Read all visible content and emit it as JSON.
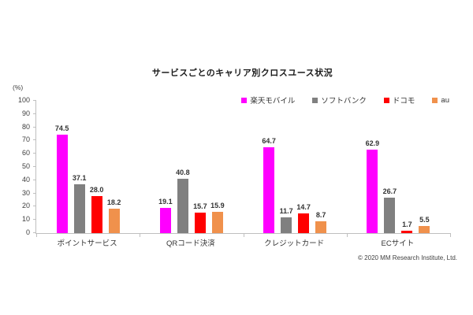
{
  "copyright": "© 2020 MM Research Institute, Ltd.",
  "chart_data": {
    "type": "bar",
    "title": "サービスごとのキャリア別クロスユース状況",
    "xlabel": "",
    "ylabel": "(%)",
    "ylim": [
      0,
      100
    ],
    "ytick_step": 10,
    "grid": false,
    "legend_position": "top-right",
    "categories": [
      "ポイントサービス",
      "QRコード決済",
      "クレジットカード",
      "ECサイト"
    ],
    "series": [
      {
        "name": "楽天モバイル",
        "color": "#FF00FF",
        "values": [
          74.5,
          19.1,
          64.7,
          62.9
        ]
      },
      {
        "name": "ソフトバンク",
        "color": "#808080",
        "values": [
          37.1,
          40.8,
          11.7,
          26.7
        ]
      },
      {
        "name": "ドコモ",
        "color": "#FF0000",
        "values": [
          28.0,
          15.7,
          14.7,
          1.7
        ]
      },
      {
        "name": "au",
        "color": "#F0914C",
        "values": [
          18.2,
          15.9,
          8.7,
          5.5
        ]
      }
    ]
  }
}
